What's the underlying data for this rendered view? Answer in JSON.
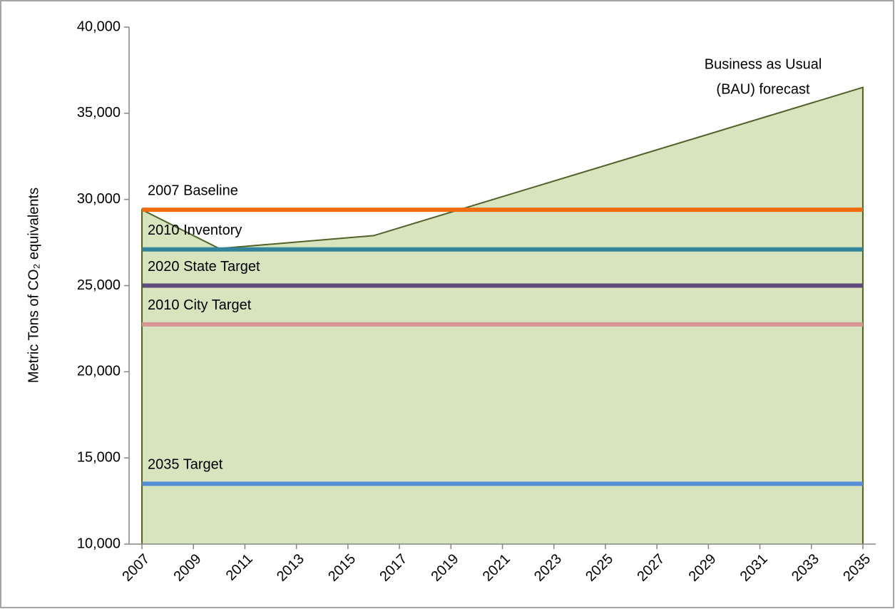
{
  "chart_data": {
    "type": "area",
    "ylabel": "Metric Tons of CO₂ equivalents",
    "annotation": [
      "Business as Usual",
      "(BAU) forecast"
    ],
    "area": {
      "x": [
        2007,
        2010,
        2016,
        2035
      ],
      "values": [
        29400,
        27150,
        27900,
        36500
      ],
      "color": "#d7e4bd",
      "edge": "#4f6228"
    },
    "lines": [
      {
        "name": "2007 Baseline",
        "value": 29400,
        "color": "#f26b0f"
      },
      {
        "name": "2010 Inventory",
        "value": 27100,
        "color": "#31849b"
      },
      {
        "name": "2020 State Target",
        "value": 25000,
        "color": "#604a7b"
      },
      {
        "name": "2010 City Target",
        "value": 22750,
        "color": "#d99594"
      },
      {
        "name": "2035 Target",
        "value": 13500,
        "color": "#558ed5"
      }
    ],
    "xlim": [
      2006.5,
      2035.5
    ],
    "xticks": [
      2007,
      2009,
      2011,
      2013,
      2015,
      2017,
      2019,
      2021,
      2023,
      2025,
      2027,
      2029,
      2031,
      2033,
      2035
    ],
    "ylim": [
      10000,
      40000
    ],
    "yticks": [
      {
        "value": 10000,
        "label": "10,000"
      },
      {
        "value": 15000,
        "label": "15,000"
      },
      {
        "value": 20000,
        "label": "20,000"
      },
      {
        "value": 25000,
        "label": "25,000"
      },
      {
        "value": 30000,
        "label": "30,000"
      },
      {
        "value": 35000,
        "label": "35,000"
      },
      {
        "value": 40000,
        "label": "40,000"
      }
    ]
  }
}
